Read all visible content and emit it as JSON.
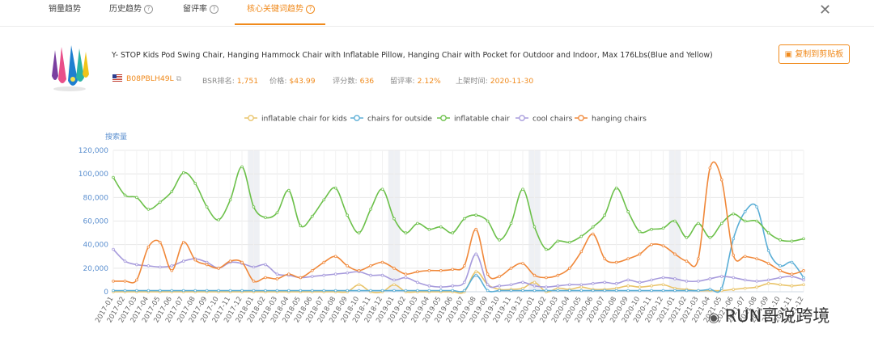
{
  "tabs": [
    {
      "label": "销量趋势",
      "help": false
    },
    {
      "label": "历史趋势",
      "help": true
    },
    {
      "label": "留评率",
      "help": true
    },
    {
      "label": "核心关键词趋势",
      "help": true,
      "active": true
    }
  ],
  "product": {
    "title": "Y- STOP Kids Pod Swing Chair, Hanging Hammock Chair with Inflatable Pillow, Hanging Chair with Pocket for Outdoor and Indoor, Max 176Lbs(Blue and Yellow)",
    "asin": "B08PBLH49L",
    "bsr_label": "BSR排名:",
    "bsr": "1,751",
    "price_label": "价格:",
    "price": "$43.99",
    "reviews_label": "评分数:",
    "reviews": "636",
    "review_rate_label": "留评率:",
    "review_rate": "2.12%",
    "launch_label": "上架时间:",
    "launch": "2020-11-30",
    "copy_button": "复制到剪贴板"
  },
  "watermark": "RUN哥说跨境",
  "colors": {
    "accent": "#f08a1c"
  },
  "chart_data": {
    "type": "line",
    "ylabel": "搜索量",
    "ylim": [
      0,
      120000
    ],
    "yticks": [
      0,
      20000,
      40000,
      60000,
      80000,
      100000,
      120000
    ],
    "ytick_labels": [
      "0",
      "20,000",
      "40,000",
      "60,000",
      "80,000",
      "100,000",
      "120,000"
    ],
    "categories": [
      "2017-01",
      "2017-02",
      "2017-03",
      "2017-04",
      "2017-05",
      "2017-06",
      "2017-07",
      "2017-08",
      "2017-09",
      "2017-10",
      "2017-11",
      "2017-12",
      "2018-01",
      "2018-02",
      "2018-03",
      "2018-04",
      "2018-05",
      "2018-06",
      "2018-07",
      "2018-08",
      "2018-09",
      "2018-10",
      "2018-11",
      "2018-12",
      "2019-01",
      "2019-02",
      "2019-03",
      "2019-04",
      "2019-05",
      "2019-06",
      "2019-07",
      "2019-08",
      "2019-09",
      "2019-10",
      "2019-11",
      "2019-12",
      "2020-01",
      "2020-02",
      "2020-03",
      "2020-04",
      "2020-05",
      "2020-06",
      "2020-07",
      "2020-08",
      "2020-09",
      "2020-10",
      "2020-11",
      "2020-12",
      "2021-01",
      "2021-02",
      "2021-03",
      "2021-04",
      "2021-05",
      "2021-06",
      "2021-07",
      "2021-08",
      "2021-09",
      "2021-10",
      "2021-11",
      "2021-12"
    ],
    "shaded_bands": [
      "2018-01",
      "2019-01",
      "2020-01",
      "2021-01"
    ],
    "series": [
      {
        "name": "inflatable chair for kids",
        "color": "#e9c46a",
        "values": [
          0,
          0,
          0,
          0,
          0,
          0,
          0,
          0,
          0,
          0,
          0,
          0,
          0,
          0,
          0,
          0,
          0,
          0,
          0,
          0,
          0,
          6000,
          0,
          0,
          6000,
          0,
          0,
          0,
          0,
          0,
          0,
          17000,
          6000,
          2000,
          2000,
          3000,
          8000,
          0,
          3000,
          2000,
          4000,
          2000,
          2000,
          3000,
          5000,
          4000,
          5000,
          6000,
          3000,
          2000,
          1000,
          1000,
          1000,
          2000,
          3000,
          4000,
          7000,
          6000,
          5000,
          6000
        ]
      },
      {
        "name": "chairs for outside",
        "color": "#5aaed6",
        "values": [
          1000,
          1000,
          1000,
          1000,
          1000,
          1000,
          1000,
          1000,
          1000,
          1000,
          1000,
          1000,
          1000,
          1000,
          1000,
          1000,
          1000,
          1000,
          1000,
          1000,
          1000,
          1000,
          1000,
          1000,
          1000,
          1000,
          1000,
          1000,
          1000,
          1000,
          1000,
          14000,
          1000,
          1000,
          1000,
          1000,
          1000,
          1000,
          1000,
          1000,
          1000,
          1000,
          1000,
          1000,
          1000,
          1000,
          1000,
          1000,
          1000,
          1000,
          1000,
          2000,
          3000,
          45000,
          68000,
          72000,
          35000,
          22000,
          25000,
          12000
        ]
      },
      {
        "name": "inflatable chair",
        "color": "#6cc04a",
        "values": [
          97000,
          82000,
          80000,
          70000,
          76000,
          85000,
          101000,
          92000,
          72000,
          61000,
          78000,
          106000,
          72000,
          63000,
          67000,
          86000,
          56000,
          64000,
          78000,
          88000,
          65000,
          50000,
          70000,
          87000,
          62000,
          50000,
          58000,
          53000,
          55000,
          50000,
          62000,
          65000,
          60000,
          44000,
          58000,
          87000,
          55000,
          36000,
          43000,
          42000,
          47000,
          55000,
          65000,
          88000,
          68000,
          51000,
          53000,
          54000,
          60000,
          46000,
          58000,
          46000,
          58000,
          66000,
          60000,
          60000,
          50000,
          44000,
          43000,
          45000
        ]
      },
      {
        "name": "cool chairs",
        "color": "#a79bdc",
        "values": [
          36000,
          26000,
          23000,
          22000,
          21000,
          22000,
          26000,
          28000,
          25000,
          20000,
          25000,
          24000,
          21000,
          23000,
          15000,
          14000,
          12000,
          13000,
          14000,
          15000,
          16000,
          17000,
          14000,
          14000,
          10000,
          12000,
          8000,
          5000,
          4000,
          5000,
          8000,
          32000,
          6000,
          5000,
          6000,
          8000,
          5000,
          4000,
          5000,
          6000,
          6000,
          7000,
          8000,
          7000,
          10000,
          8000,
          10000,
          12000,
          11000,
          9000,
          9000,
          11000,
          13000,
          12000,
          10000,
          9000,
          10000,
          12000,
          13000,
          10000
        ]
      },
      {
        "name": "hanging chairs",
        "color": "#f0883a",
        "values": [
          9000,
          9000,
          10000,
          38000,
          42000,
          18000,
          42000,
          27000,
          23000,
          20000,
          26000,
          25000,
          9000,
          12000,
          11000,
          15000,
          12000,
          18000,
          25000,
          30000,
          22000,
          18000,
          22000,
          25000,
          20000,
          15000,
          17000,
          18000,
          18000,
          19000,
          22000,
          53000,
          15000,
          13000,
          20000,
          24000,
          14000,
          12000,
          14000,
          20000,
          34000,
          49000,
          28000,
          25000,
          28000,
          32000,
          40000,
          39000,
          32000,
          26000,
          28000,
          105000,
          95000,
          31000,
          30000,
          28000,
          24000,
          18000,
          15000,
          18000
        ]
      }
    ]
  }
}
